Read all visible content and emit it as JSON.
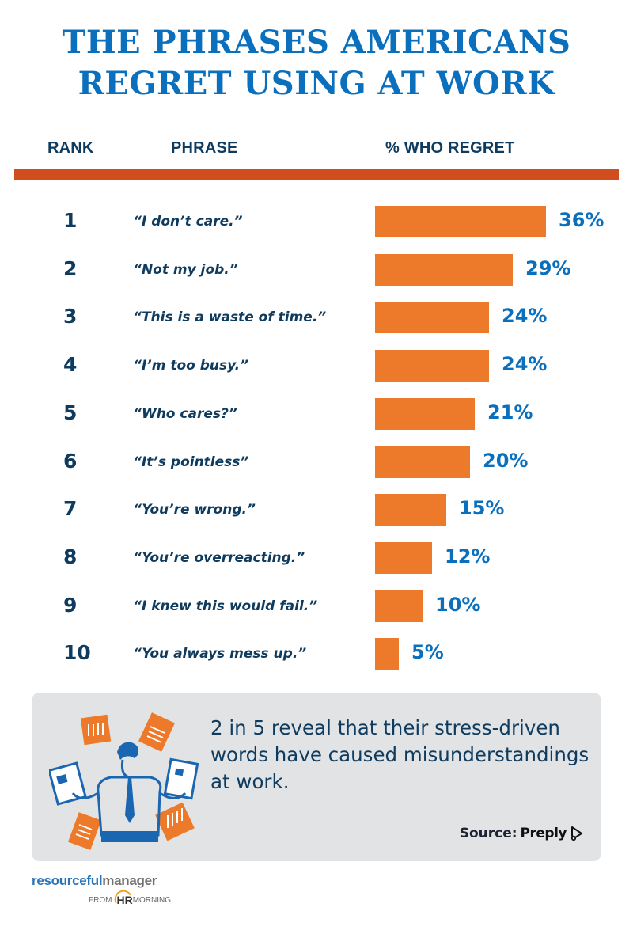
{
  "title": {
    "line1": "THE PHRASES AMERICANS",
    "line2": "REGRET USING AT WORK"
  },
  "columns": {
    "rank": "RANK",
    "phrase": "PHRASE",
    "percent": "% WHO REGRET"
  },
  "rows": [
    {
      "rank": "1",
      "phrase": "“I don’t care.”",
      "label": "36%",
      "value": 36
    },
    {
      "rank": "2",
      "phrase": "“Not my job.”",
      "label": "29%",
      "value": 29
    },
    {
      "rank": "3",
      "phrase": "“This is a waste of time.”",
      "label": "24%",
      "value": 24
    },
    {
      "rank": "4",
      "phrase": "“I’m too busy.”",
      "label": "24%",
      "value": 24
    },
    {
      "rank": "5",
      "phrase": "“Who cares?”",
      "label": "21%",
      "value": 21
    },
    {
      "rank": "6",
      "phrase": "“It’s pointless”",
      "label": "20%",
      "value": 20
    },
    {
      "rank": "7",
      "phrase": "“You’re wrong.”",
      "label": "15%",
      "value": 15
    },
    {
      "rank": "8",
      "phrase": "“You’re overreacting.”",
      "label": "12%",
      "value": 12
    },
    {
      "rank": "9",
      "phrase": "“I knew this would fail.”",
      "label": "10%",
      "value": 10
    },
    {
      "rank": "10",
      "phrase": "“You always mess up.”",
      "label": "5%",
      "value": 5
    }
  ],
  "callout": {
    "stat_text": "2 in 5 reveal that their stress-driven words have caused misunderstandings at work.",
    "source_label": "Source:",
    "source_brand": "Preply"
  },
  "footer": {
    "logo_part1": "resourceful",
    "logo_part2": "manager",
    "from_label": "FROM",
    "hr_label": "HR",
    "morning_label": "MORNING"
  },
  "colors": {
    "title_blue": "#0a6fbd",
    "navy_text": "#0e3b5e",
    "bar_orange": "#ed7a2a",
    "rule_orange": "#d04e1d",
    "panel_gray": "#e2e3e5"
  },
  "chart_data": {
    "type": "bar",
    "orientation": "horizontal",
    "title": "The Phrases Americans Regret Using at Work",
    "xlabel": "% Who Regret",
    "ylabel": "Phrase",
    "categories": [
      "I don't care.",
      "Not my job.",
      "This is a waste of time.",
      "I'm too busy.",
      "Who cares?",
      "It's pointless",
      "You're wrong.",
      "You're overreacting.",
      "I knew this would fail.",
      "You always mess up."
    ],
    "ranks": [
      1,
      2,
      3,
      4,
      5,
      6,
      7,
      8,
      9,
      10
    ],
    "values": [
      36,
      29,
      24,
      24,
      21,
      20,
      15,
      12,
      10,
      5
    ],
    "unit": "%",
    "grid": false,
    "legend": null,
    "source": "Preply"
  }
}
